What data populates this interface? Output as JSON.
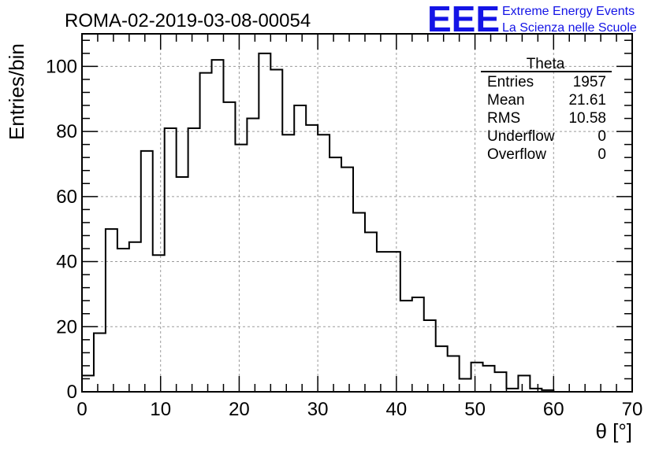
{
  "header": {
    "title": "ROMA-02-2019-03-08-00054",
    "logo_text": "EEE",
    "brand_line1": "Extreme Energy Events",
    "brand_line2": "La Scienza nelle Scuole"
  },
  "stats_box": {
    "title": "Theta",
    "rows": [
      {
        "label": "Entries",
        "value": "1957"
      },
      {
        "label": "Mean",
        "value": "21.61"
      },
      {
        "label": "RMS",
        "value": "10.58"
      },
      {
        "label": "Underflow",
        "value": "0"
      },
      {
        "label": "Overflow",
        "value": "0"
      }
    ]
  },
  "colors": {
    "logo": "#1414e6",
    "line": "#000000",
    "grid": "#9a9a9a"
  },
  "chart_data": {
    "type": "bar",
    "histogram": true,
    "title": "ROMA-02-2019-03-08-00054",
    "xlabel": "θ [°]",
    "ylabel": "Entries/bin",
    "xlim": [
      0,
      70
    ],
    "ylim": [
      0,
      110
    ],
    "bin_width": 1.5,
    "x_ticks": [
      0,
      10,
      20,
      30,
      40,
      50,
      60,
      70
    ],
    "y_ticks": [
      0,
      20,
      40,
      60,
      80,
      100
    ],
    "grid": true,
    "series": [
      {
        "values": [
          5,
          18,
          50,
          44,
          46,
          74,
          42,
          81,
          66,
          81,
          98,
          102,
          89,
          76,
          84,
          104,
          99,
          79,
          88,
          82,
          79,
          72,
          69,
          55,
          49,
          43,
          43,
          28,
          29,
          22,
          14,
          11,
          4,
          9,
          8,
          6,
          1,
          5,
          1,
          0.5
        ]
      }
    ]
  }
}
